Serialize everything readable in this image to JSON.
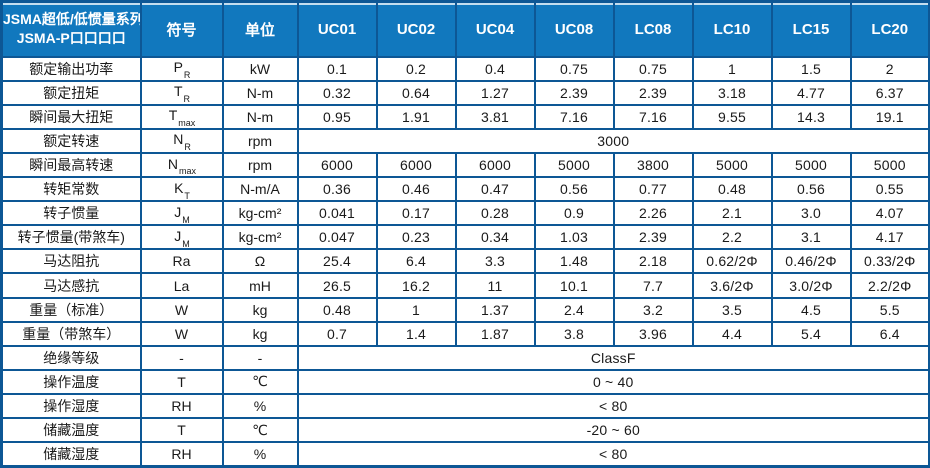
{
  "colors": {
    "header_bg": "#1178be",
    "header_text": "#ffffff",
    "grid_line": "#0d5795",
    "header_separator": "#9dc3e6",
    "body_text": "#1a1a1a"
  },
  "table": {
    "title_line1": "JSMA超低/低惯量系列",
    "title_line2": "JSMA-P口口口口",
    "col_headers": [
      {
        "key": "symbol",
        "label": "符号"
      },
      {
        "key": "unit",
        "label": "单位"
      },
      {
        "key": "uc01",
        "label": "UC01"
      },
      {
        "key": "uc02",
        "label": "UC02"
      },
      {
        "key": "uc04",
        "label": "UC04"
      },
      {
        "key": "uc08",
        "label": "UC08"
      },
      {
        "key": "lc08",
        "label": "LC08",
        "series_divider": true
      },
      {
        "key": "lc10",
        "label": "LC10"
      },
      {
        "key": "lc15",
        "label": "LC15"
      },
      {
        "key": "lc20",
        "label": "LC20"
      }
    ],
    "rows": [
      {
        "label": "额定输出功率",
        "sym": "P",
        "sub": "R",
        "unit": "kW",
        "values": [
          "0.1",
          "0.2",
          "0.4",
          "0.75",
          "0.75",
          "1",
          "1.5",
          "2"
        ]
      },
      {
        "label": "额定扭矩",
        "sym": "T",
        "sub": "R",
        "unit": "N-m",
        "values": [
          "0.32",
          "0.64",
          "1.27",
          "2.39",
          "2.39",
          "3.18",
          "4.77",
          "6.37"
        ]
      },
      {
        "label": "瞬间最大扭矩",
        "sym": "T",
        "sub": "max",
        "unit": "N-m",
        "values": [
          "0.95",
          "1.91",
          "3.81",
          "7.16",
          "7.16",
          "9.55",
          "14.3",
          "19.1"
        ]
      },
      {
        "label": "额定转速",
        "sym": "N",
        "sub": "R",
        "unit": "rpm",
        "merged": "3000"
      },
      {
        "label": "瞬间最高转速",
        "sym": "N",
        "sub": "max",
        "unit": "rpm",
        "values": [
          "6000",
          "6000",
          "6000",
          "5000",
          "3800",
          "5000",
          "5000",
          "5000"
        ]
      },
      {
        "label": "转矩常数",
        "sym": "K",
        "sub": "T",
        "unit": "N-m/A",
        "values": [
          "0.36",
          "0.46",
          "0.47",
          "0.56",
          "0.77",
          "0.48",
          "0.56",
          "0.55"
        ]
      },
      {
        "label": "转子惯量",
        "sym": "J",
        "sub": "M",
        "unit": "kg-cm²",
        "values": [
          "0.041",
          "0.17",
          "0.28",
          "0.9",
          "2.26",
          "2.1",
          "3.0",
          "4.07"
        ]
      },
      {
        "label": "转子惯量(带煞车)",
        "sym": "J",
        "sub": "M",
        "unit": "kg-cm²",
        "values": [
          "0.047",
          "0.23",
          "0.34",
          "1.03",
          "2.39",
          "2.2",
          "3.1",
          "4.17"
        ]
      },
      {
        "label": "马达阻抗",
        "sym": "Ra",
        "sub": "",
        "unit": "Ω",
        "values": [
          "25.4",
          "6.4",
          "3.3",
          "1.48",
          "2.18",
          "0.62/2Φ",
          "0.46/2Φ",
          "0.33/2Φ"
        ]
      },
      {
        "label": "马达感抗",
        "sym": "La",
        "sub": "",
        "unit": "mH",
        "values": [
          "26.5",
          "16.2",
          "11",
          "10.1",
          "7.7",
          "3.6/2Φ",
          "3.0/2Φ",
          "2.2/2Φ"
        ]
      },
      {
        "label": "重量（标准）",
        "sym": "W",
        "sub": "",
        "unit": "kg",
        "values": [
          "0.48",
          "1",
          "1.37",
          "2.4",
          "3.2",
          "3.5",
          "4.5",
          "5.5"
        ]
      },
      {
        "label": "重量（带煞车）",
        "sym": "W",
        "sub": "",
        "unit": "kg",
        "values": [
          "0.7",
          "1.4",
          "1.87",
          "3.8",
          "3.96",
          "4.4",
          "5.4",
          "6.4"
        ]
      },
      {
        "label": "绝缘等级",
        "sym": "-",
        "sub": "",
        "unit": "-",
        "merged": "ClassF"
      },
      {
        "label": "操作温度",
        "sym": "T",
        "sub": "",
        "unit": "℃",
        "merged": "0 ~ 40"
      },
      {
        "label": "操作湿度",
        "sym": "RH",
        "sub": "",
        "unit": "%",
        "merged": "< 80"
      },
      {
        "label": "储藏温度",
        "sym": "T",
        "sub": "",
        "unit": "℃",
        "merged": "-20 ~ 60"
      },
      {
        "label": "储藏湿度",
        "sym": "RH",
        "sub": "",
        "unit": "%",
        "merged": "< 80"
      }
    ]
  }
}
